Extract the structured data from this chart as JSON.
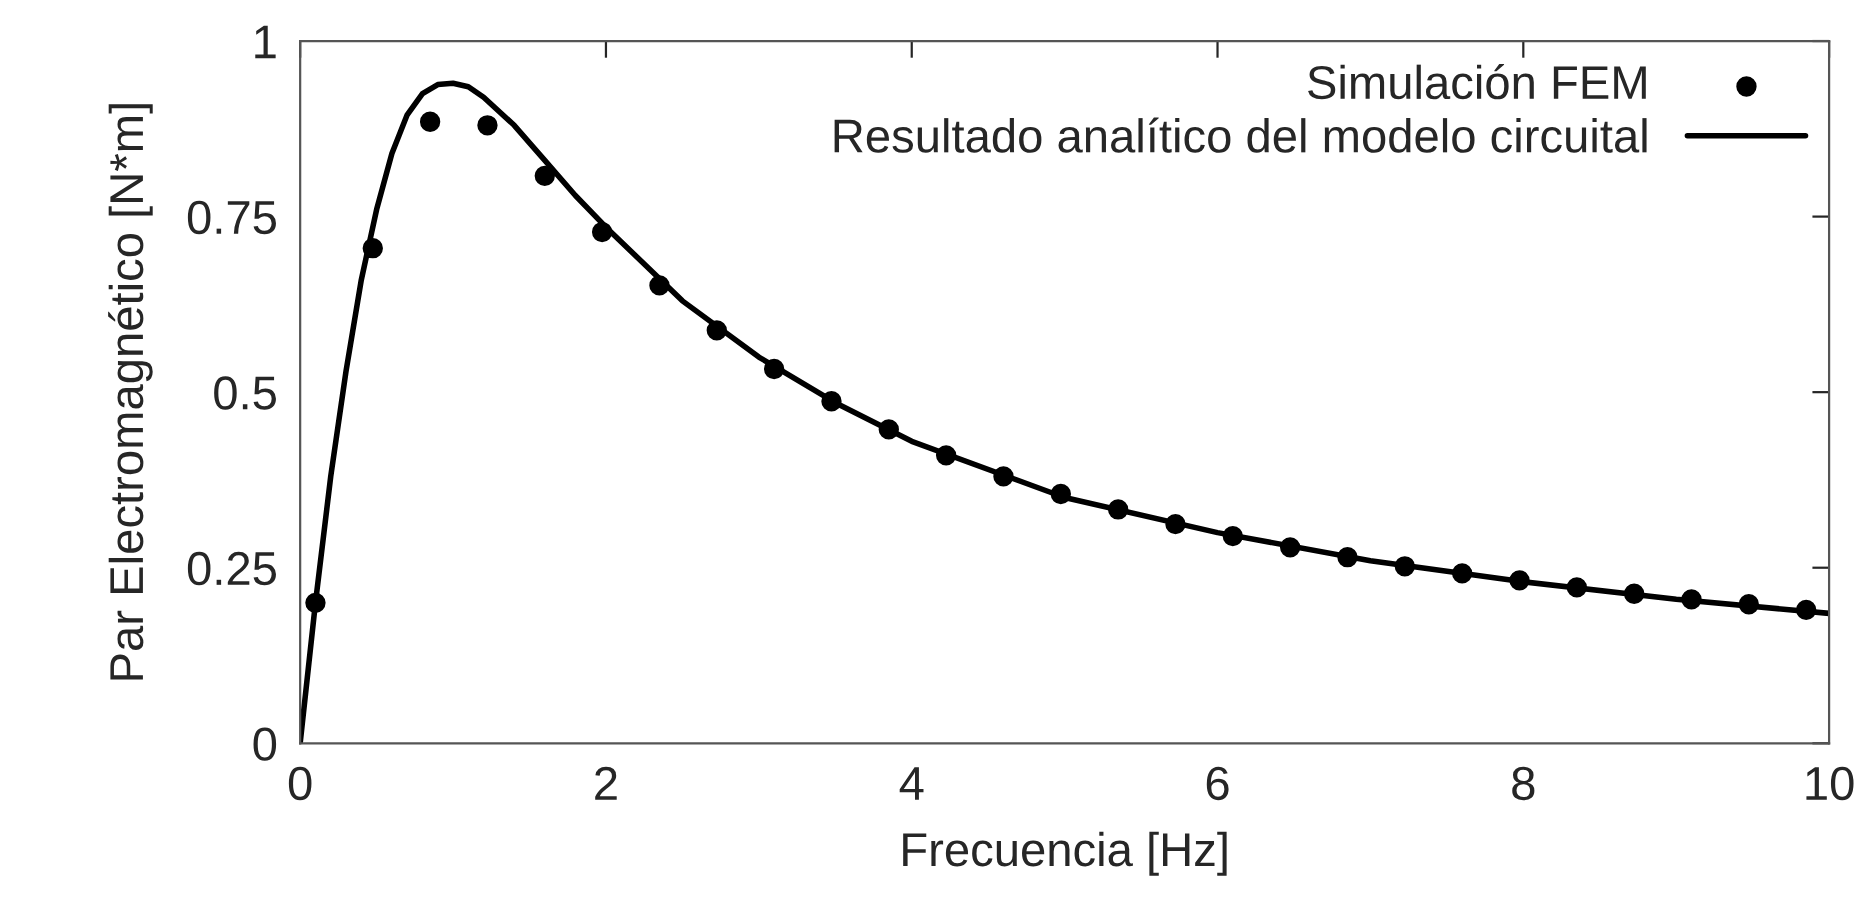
{
  "chart_data": {
    "type": "scatter",
    "xlabel": "Frecuencia [Hz]",
    "ylabel": "Par Electromagnético [N*m]",
    "xlim": [
      0,
      10
    ],
    "ylim": [
      0,
      1
    ],
    "xticks": [
      0,
      2,
      4,
      6,
      8,
      10
    ],
    "yticks": [
      0,
      0.25,
      0.5,
      0.75,
      1
    ],
    "grid": false,
    "legend": "top right",
    "series": [
      {
        "name": "Simulación FEM",
        "marker": "circle",
        "color": "#000000",
        "x": [
          0.1,
          0.475,
          0.85,
          1.225,
          1.6,
          1.975,
          2.35,
          2.725,
          3.1,
          3.475,
          3.85,
          4.225,
          4.6,
          4.975,
          5.35,
          5.725,
          6.1,
          6.475,
          6.85,
          7.225,
          7.6,
          7.975,
          8.35,
          8.725,
          9.1,
          9.475,
          9.85
        ],
        "values": [
          0.2,
          0.705,
          0.885,
          0.88,
          0.808,
          0.728,
          0.652,
          0.588,
          0.533,
          0.487,
          0.447,
          0.41,
          0.38,
          0.355,
          0.333,
          0.312,
          0.295,
          0.279,
          0.265,
          0.252,
          0.242,
          0.232,
          0.222,
          0.213,
          0.205,
          0.198,
          0.19
        ]
      },
      {
        "name": "Resultado analítico del modelo circuital",
        "type": "line",
        "marker": "none",
        "line_style": "solid",
        "color": "#000000",
        "x": [
          0,
          0.1,
          0.2,
          0.3,
          0.4,
          0.5,
          0.6,
          0.7,
          0.8,
          0.9,
          1.0,
          1.1,
          1.2,
          1.4,
          1.6,
          1.8,
          2,
          2.5,
          3,
          3.5,
          4,
          5,
          6,
          7,
          8,
          9,
          10
        ],
        "values": [
          0,
          0.2,
          0.38,
          0.53,
          0.66,
          0.76,
          0.84,
          0.895,
          0.925,
          0.938,
          0.94,
          0.935,
          0.92,
          0.88,
          0.83,
          0.78,
          0.735,
          0.63,
          0.55,
          0.485,
          0.43,
          0.35,
          0.3,
          0.26,
          0.23,
          0.205,
          0.185
        ]
      }
    ]
  }
}
